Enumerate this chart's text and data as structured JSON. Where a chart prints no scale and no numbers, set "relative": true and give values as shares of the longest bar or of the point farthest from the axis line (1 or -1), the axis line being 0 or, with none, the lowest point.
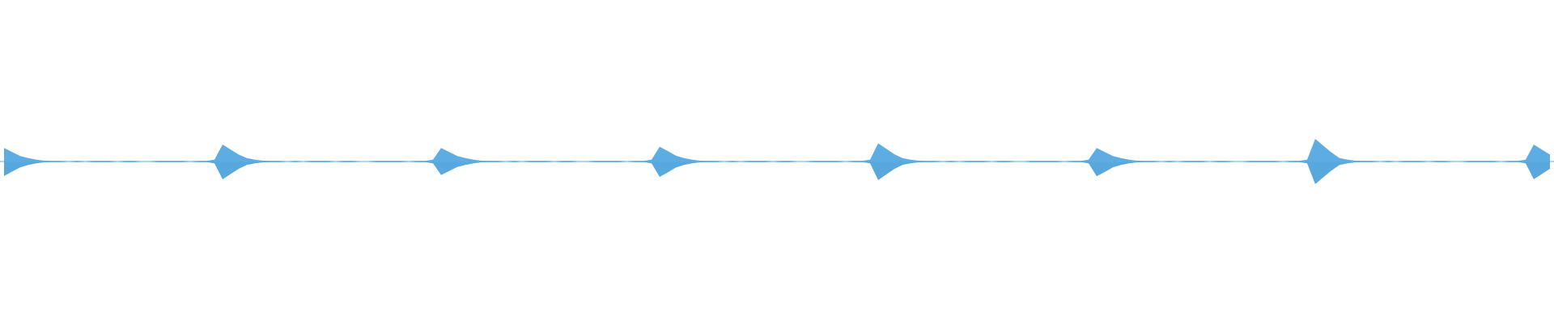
{
  "chart_data": {
    "type": "area",
    "relative": true,
    "ref_lines": [
      {
        "axis": "y",
        "value": 0,
        "color": "#5dade2"
      }
    ],
    "categories": [
      null,
      null,
      null,
      null,
      null,
      null,
      null,
      null,
      null,
      null,
      null,
      null,
      null,
      null,
      null,
      null,
      null,
      null,
      null,
      null,
      null,
      null,
      null,
      null,
      null,
      null,
      null,
      null,
      null,
      null,
      null,
      null,
      null,
      null,
      null,
      null,
      null,
      null,
      null,
      null,
      null,
      null,
      null,
      null,
      null,
      null,
      null,
      null,
      null,
      null,
      null,
      null,
      null,
      null,
      null,
      null,
      null,
      null,
      null,
      null,
      null,
      null,
      null,
      null,
      null,
      null,
      null,
      null,
      null,
      null,
      null,
      null,
      null,
      null,
      null,
      null,
      null,
      null,
      null,
      null,
      null,
      null,
      null,
      null,
      null,
      null,
      null,
      null,
      null,
      null,
      null,
      null,
      null,
      null,
      null,
      null,
      null,
      null,
      null,
      null,
      null,
      null,
      null,
      null,
      null,
      null,
      null,
      null,
      null,
      null,
      null,
      null,
      null,
      null,
      null,
      null,
      null,
      null,
      null,
      null,
      null,
      null,
      null,
      null,
      null,
      null,
      null,
      null,
      null,
      null,
      null,
      null,
      null,
      null,
      null,
      null,
      null,
      null,
      null,
      null,
      null,
      null,
      null,
      null,
      null,
      null,
      null,
      null,
      null,
      null,
      null,
      null,
      null,
      null,
      null,
      null,
      null,
      null,
      null,
      null,
      null,
      null,
      null,
      null,
      null,
      null,
      null,
      null,
      null,
      null,
      null,
      null,
      null,
      null,
      null,
      null,
      null,
      null,
      null,
      null,
      null,
      null,
      null,
      null,
      null,
      null,
      null,
      null,
      null,
      null,
      null,
      null
    ],
    "series": [
      {
        "color": "#5dade2",
        "values": [
          0.6,
          0.42,
          0.24,
          0.15,
          0.08,
          0.04,
          0.03,
          0.03,
          0,
          0.03,
          0,
          0.03,
          0.03,
          0.03,
          0,
          0.03,
          0.03,
          0,
          0,
          0.03,
          0.03,
          0.03,
          0.03,
          0,
          0.03,
          0.03,
          0.08,
          0.75,
          0.53,
          0.3,
          0.15,
          0.08,
          0.04,
          0.03,
          0.03,
          0,
          0.03,
          0,
          0.03,
          0.03,
          0.03,
          0,
          0.03,
          0.03,
          0,
          0,
          0.03,
          0.03,
          0.03,
          0.03,
          0,
          0.03,
          0.03,
          0.08,
          0.6,
          0.42,
          0.24,
          0.15,
          0.08,
          0.04,
          0.03,
          0.03,
          0,
          0.03,
          0,
          0.03,
          0.03,
          0.03,
          0,
          0.03,
          0.03,
          0,
          0,
          0.03,
          0.03,
          0.03,
          0.03,
          0,
          0.03,
          0.03,
          0.08,
          0.65,
          0.46,
          0.26,
          0.15,
          0.08,
          0.04,
          0.03,
          0.03,
          0,
          0.03,
          0,
          0.03,
          0.03,
          0.03,
          0,
          0.03,
          0.03,
          0,
          0,
          0.03,
          0.03,
          0.03,
          0.03,
          0,
          0.03,
          0.03,
          0.08,
          0.8,
          0.56,
          0.32,
          0.15,
          0.08,
          0.04,
          0.03,
          0.03,
          0,
          0.03,
          0,
          0.03,
          0.03,
          0.03,
          0,
          0.03,
          0.03,
          0,
          0,
          0.03,
          0.03,
          0.03,
          0.03,
          0,
          0.03,
          0.03,
          0.08,
          0.6,
          0.42,
          0.24,
          0.15,
          0.08,
          0.04,
          0.03,
          0.03,
          0,
          0.03,
          0,
          0.03,
          0.03,
          0.03,
          0,
          0.03,
          0.03,
          0,
          0,
          0.03,
          0.03,
          0.03,
          0.03,
          0,
          0.03,
          0.03,
          0.08,
          1,
          0.7,
          0.4,
          0.15,
          0.08,
          0.04,
          0.03,
          0.03,
          0,
          0.03,
          0,
          0.03,
          0.03,
          0.03,
          0,
          0.03,
          0.03,
          0,
          0,
          0.03,
          0.03,
          0.03,
          0.03,
          0,
          0.03,
          0.03,
          0.08,
          0.75,
          0.53,
          0.3
        ]
      },
      {
        "color": "#58a8dd",
        "values": [
          -0.64,
          -0.45,
          -0.26,
          -0.15,
          -0.08,
          -0.04,
          -0.03,
          -0.03,
          0,
          -0.03,
          0,
          -0.03,
          -0.03,
          -0.03,
          0,
          -0.03,
          -0.03,
          0,
          0,
          -0.03,
          -0.03,
          -0.03,
          -0.03,
          0,
          -0.03,
          -0.03,
          -0.08,
          -0.79,
          -0.55,
          -0.32,
          -0.15,
          -0.08,
          -0.04,
          -0.03,
          -0.03,
          0,
          -0.03,
          0,
          -0.03,
          -0.03,
          -0.03,
          0,
          -0.03,
          -0.03,
          0,
          0,
          -0.03,
          -0.03,
          -0.03,
          -0.03,
          0,
          -0.03,
          -0.03,
          -0.08,
          -0.6,
          -0.42,
          -0.24,
          -0.15,
          -0.08,
          -0.04,
          -0.03,
          -0.03,
          0,
          -0.03,
          0,
          -0.03,
          -0.03,
          -0.03,
          0,
          -0.03,
          -0.03,
          0,
          0,
          -0.03,
          -0.03,
          -0.03,
          -0.03,
          0,
          -0.03,
          -0.03,
          -0.08,
          -0.68,
          -0.48,
          -0.27,
          -0.15,
          -0.08,
          -0.04,
          -0.03,
          -0.03,
          0,
          -0.03,
          0,
          -0.03,
          -0.03,
          -0.03,
          0,
          -0.03,
          -0.03,
          0,
          0,
          -0.03,
          -0.03,
          -0.03,
          -0.03,
          0,
          -0.03,
          -0.03,
          -0.08,
          -0.82,
          -0.57,
          -0.33,
          -0.15,
          -0.08,
          -0.04,
          -0.03,
          -0.03,
          0,
          -0.03,
          0,
          -0.03,
          -0.03,
          -0.03,
          0,
          -0.03,
          -0.03,
          0,
          0,
          -0.03,
          -0.03,
          -0.03,
          -0.03,
          0,
          -0.03,
          -0.03,
          -0.08,
          -0.65,
          -0.46,
          -0.26,
          -0.15,
          -0.08,
          -0.04,
          -0.03,
          -0.03,
          0,
          -0.03,
          0,
          -0.03,
          -0.03,
          -0.03,
          0,
          -0.03,
          -0.03,
          0,
          0,
          -0.03,
          -0.03,
          -0.03,
          -0.03,
          0,
          -0.03,
          -0.03,
          -0.08,
          -1,
          -0.7,
          -0.4,
          -0.15,
          -0.08,
          -0.04,
          -0.03,
          -0.03,
          0,
          -0.03,
          0,
          -0.03,
          -0.03,
          -0.03,
          0,
          -0.03,
          -0.03,
          0,
          0,
          -0.03,
          -0.03,
          -0.03,
          -0.03,
          0,
          -0.03,
          -0.03,
          -0.08,
          -0.79,
          -0.55,
          -0.32
        ]
      }
    ]
  }
}
